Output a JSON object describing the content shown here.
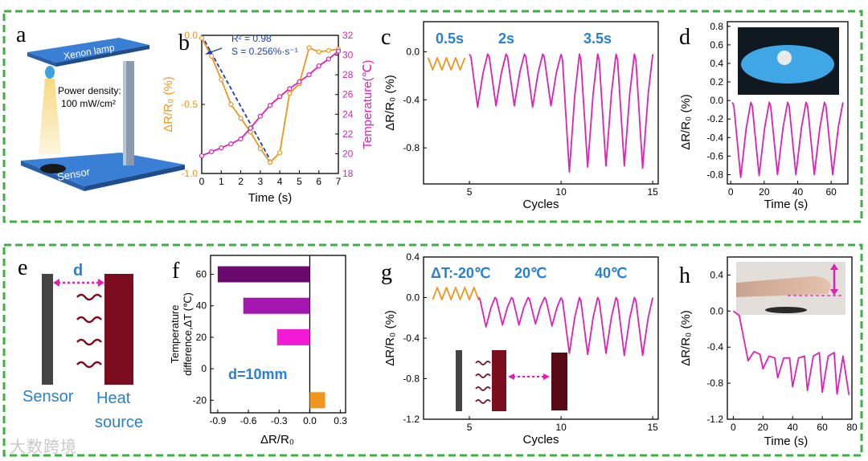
{
  "colors": {
    "frame": "#3cb043",
    "orange": "#f0951e",
    "magenta": "#e020b4",
    "blue_label": "#2b7fd0",
    "dark_red": "#7b0d1e",
    "sensor_gray": "#444444",
    "dashed_fit": "#1f3fb0",
    "bar_purple_dark": "#6a0a6e",
    "bar_purple_mid": "#a516b0",
    "bar_magenta": "#f21ad5",
    "bar_orange": "#f0951e",
    "stage_blue": "#3a7fd6",
    "lamp_beam": "#f6d77a"
  },
  "panels": {
    "a": {
      "letter": "a",
      "lamp_label": "Xenon lamp",
      "power_label_1": "Power density:",
      "power_label_2": "100 mW/cm²",
      "sensor_label": "Sensor"
    },
    "e": {
      "letter": "e",
      "d_label": "d",
      "sensor_label": "Sensor",
      "heat_label_1": "Heat",
      "heat_label_2": "source"
    }
  },
  "watermark": "大数跨境",
  "chart_data": [
    {
      "panel": "b",
      "type": "line",
      "xlabel": "Time (s)",
      "ylabel": "ΔR/R₀ (%)",
      "y2label": "Temperature(℃)",
      "xlim": [
        0,
        7
      ],
      "ylim": [
        -1.0,
        0.0
      ],
      "y2lim": [
        18,
        32
      ],
      "xticks": [
        0,
        1,
        2,
        3,
        4,
        5,
        6,
        7
      ],
      "yticks": [
        -1.0,
        -0.5,
        0.0
      ],
      "ytick_labels": [
        "-1.0",
        "-0.5",
        "0.0"
      ],
      "y2ticks": [
        18,
        20,
        22,
        24,
        26,
        28,
        30,
        32
      ],
      "annotations": [
        "R² = 0.98",
        "S = 0.256%·s⁻¹"
      ],
      "series": [
        {
          "axis": "left",
          "x": [
            0,
            0.5,
            1,
            1.5,
            2,
            2.5,
            3,
            3.5,
            4,
            4.5,
            5,
            5.5,
            6,
            6.5,
            7
          ],
          "values": [
            -0.02,
            -0.15,
            -0.32,
            -0.5,
            -0.6,
            -0.7,
            -0.82,
            -0.92,
            -0.85,
            -0.42,
            -0.35,
            -0.09,
            -0.12,
            -0.11,
            -0.1
          ]
        },
        {
          "axis": "right",
          "x": [
            0,
            0.5,
            1,
            1.5,
            2,
            2.5,
            3,
            3.5,
            4,
            4.5,
            5,
            5.5,
            6,
            6.5,
            7
          ],
          "values": [
            19.8,
            20.2,
            20.6,
            21.0,
            21.5,
            22.6,
            23.8,
            24.9,
            25.8,
            26.6,
            27.3,
            28.0,
            28.9,
            29.6,
            30.4
          ]
        },
        {
          "axis": "left",
          "style": "dashed-fit",
          "x": [
            0,
            3.5
          ],
          "values": [
            0.0,
            -0.9
          ]
        }
      ]
    },
    {
      "panel": "c",
      "type": "line",
      "xlabel": "Cycles",
      "ylabel": "ΔR/R₀ (%)",
      "xlim": [
        2.5,
        15.3
      ],
      "ylim": [
        -1.1,
        0.25
      ],
      "xticks": [
        5,
        10,
        15
      ],
      "yticks": [
        -0.8,
        -0.4,
        0.0
      ],
      "ytick_labels": [
        "-0.8",
        "-0.4",
        "0.0"
      ],
      "annotations": [
        "0.5s",
        "2s",
        "3.5s"
      ],
      "series": [
        {
          "segment": "0.5s",
          "cycles": [
            [
              2.75,
              3.0,
              3.25,
              3.5,
              3.75,
              4.0,
              4.25,
              4.5,
              4.75
            ],
            [
              -0.05,
              -0.15,
              -0.05,
              -0.15,
              -0.05,
              -0.15,
              -0.05,
              -0.15,
              -0.05
            ]
          ]
        },
        {
          "segment": "2s",
          "minima": [
            -0.46,
            -0.45,
            -0.45,
            -0.46,
            -0.45
          ],
          "cycle_range": [
            5,
            10
          ]
        },
        {
          "segment": "3.5s",
          "minima": [
            -1.0,
            -0.96,
            -0.95,
            -0.95,
            -0.97
          ],
          "cycle_range": [
            10,
            15
          ]
        }
      ]
    },
    {
      "panel": "d",
      "type": "line",
      "xlabel": "Time (s)",
      "ylabel": "ΔR/R₀ (%)",
      "xlim": [
        -2,
        70
      ],
      "ylim": [
        -0.9,
        0.85
      ],
      "xticks": [
        0,
        20,
        40,
        60
      ],
      "yticks": [
        -0.8,
        -0.6,
        -0.4,
        -0.2,
        0.0,
        0.2,
        0.4,
        0.6,
        0.8
      ],
      "ytick_labels": [
        "-0.8",
        "-0.6",
        "-0.4",
        "-0.2",
        "0.0",
        "0.2",
        "0.4",
        "0.6",
        "0.8"
      ],
      "series": [
        {
          "minima": [
            -0.83,
            -0.81,
            -0.8,
            -0.8,
            -0.8,
            -0.8
          ],
          "period_s": 11,
          "peak": -0.02
        }
      ]
    },
    {
      "panel": "f",
      "type": "bar",
      "orientation": "horizontal",
      "xlabel": "ΔR/R₀",
      "ylabel": "Temperature difference,ΔT (℃)",
      "xlim": [
        -0.97,
        0.35
      ],
      "ylim": [
        -28,
        72
      ],
      "xticks": [
        -0.9,
        -0.6,
        -0.3,
        0.0,
        0.3
      ],
      "yticks": [
        -20,
        0,
        20,
        40,
        60
      ],
      "annotations": [
        "d=10mm"
      ],
      "categories": [
        60,
        40,
        20,
        -20
      ],
      "values": [
        -0.9,
        -0.65,
        -0.32,
        0.15
      ]
    },
    {
      "panel": "g",
      "type": "line",
      "xlabel": "Cycles",
      "ylabel": "ΔR/R₀ (%)",
      "xlim": [
        2.5,
        15.3
      ],
      "ylim": [
        -1.2,
        0.4
      ],
      "xticks": [
        5,
        10,
        15
      ],
      "yticks": [
        -1.2,
        -0.8,
        -0.4,
        0.0,
        0.4
      ],
      "ytick_labels": [
        "-1.2",
        "-0.8",
        "-0.4",
        "0.0",
        "0.4"
      ],
      "annotations": [
        "ΔT:-20℃",
        "20℃",
        "40℃"
      ],
      "series": [
        {
          "segment": "ΔT:-20℃",
          "low": -0.02,
          "high": 0.1
        },
        {
          "segment": "20℃",
          "minima": [
            -0.29,
            -0.27,
            -0.27,
            -0.26,
            -0.28
          ]
        },
        {
          "segment": "40℃",
          "minima": [
            -0.55,
            -0.56,
            -0.55,
            -0.57,
            -0.57
          ]
        }
      ]
    },
    {
      "panel": "h",
      "type": "line",
      "xlabel": "Time (s)",
      "ylabel": "ΔR/R₀ (%)",
      "xlim": [
        -4,
        80
      ],
      "ylim": [
        -1.2,
        0.6
      ],
      "xticks": [
        0,
        20,
        40,
        60,
        80
      ],
      "yticks": [
        -1.2,
        -0.8,
        -0.4,
        0.0,
        0.4
      ],
      "ytick_labels": [
        "-1.2",
        "-0.8",
        "-0.4",
        "0.0",
        "0.4"
      ],
      "series": [
        {
          "t": [
            0,
            4,
            8,
            10,
            14,
            18,
            20,
            24,
            28,
            30,
            34,
            38,
            40,
            44,
            48,
            50,
            54,
            58,
            60,
            64,
            68,
            70,
            74,
            78
          ],
          "values": [
            0.0,
            -0.05,
            -0.38,
            -0.55,
            -0.45,
            -0.48,
            -0.64,
            -0.5,
            -0.52,
            -0.74,
            -0.52,
            -0.52,
            -0.84,
            -0.52,
            -0.5,
            -0.88,
            -0.5,
            -0.46,
            -0.9,
            -0.5,
            -0.46,
            -0.92,
            -0.5,
            -0.93
          ]
        }
      ]
    }
  ]
}
